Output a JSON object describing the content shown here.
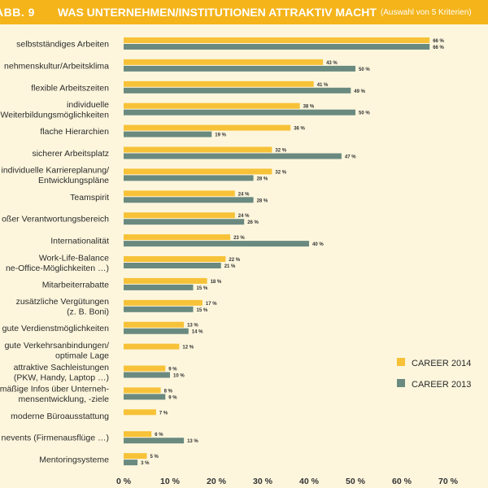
{
  "header": {
    "label": "ABB. 9",
    "title": "WAS UNTERNEHMEN/INSTITUTIONEN ATTRAKTIV MACHT",
    "subtitle": "(Auswahl von 5 Kriterien)"
  },
  "colors": {
    "header_bg": "#f4b41a",
    "background": "#fdf6dd",
    "series_2014": "#f7c238",
    "series_2013": "#6a8a80"
  },
  "chart_data": {
    "type": "bar",
    "orientation": "horizontal",
    "title": "WAS UNTERNEHMEN/INSTITUTIONEN ATTRAKTIV MACHT",
    "subtitle": "(Auswahl von 5 Kriterien)",
    "xlim": [
      0,
      70
    ],
    "xticks": [
      "0 %",
      "10 %",
      "20 %",
      "30 %",
      "40 %",
      "50 %",
      "60 %",
      "70 %"
    ],
    "value_suffix": " %",
    "legend_position": "right",
    "categories": [
      [
        "selbstständiges Arbeiten"
      ],
      [
        "nehmenskultur/Arbeitsklima"
      ],
      [
        "flexible Arbeitszeiten"
      ],
      [
        "individuelle",
        "Weiterbildungsmöglichkeiten"
      ],
      [
        "flache Hierarchien"
      ],
      [
        "sicherer Arbeitsplatz"
      ],
      [
        "individuelle Karriereplanung/",
        "Entwicklungspläne"
      ],
      [
        "Teamspirit"
      ],
      [
        "oßer Verantwortungsbereich"
      ],
      [
        "Internationalität"
      ],
      [
        "Work-Life-Balance",
        "ne-Office-Möglichkeiten …)"
      ],
      [
        "Mitarbeiterrabatte"
      ],
      [
        "zusätzliche Vergütungen",
        "(z. B. Boni)"
      ],
      [
        "gute Verdienstmöglichkeiten"
      ],
      [
        "gute Verkehrsanbindungen/",
        "optimale Lage"
      ],
      [
        "attraktive Sachleistungen",
        "(PKW, Handy, Laptop …)"
      ],
      [
        "mäßige Infos über Unterneh-",
        "mensentwicklung, -ziele"
      ],
      [
        "moderne Büroausstattung"
      ],
      [
        "nevents (Firmenausflüge …)"
      ],
      [
        "Mentoringsysteme"
      ]
    ],
    "series": [
      {
        "name": "CAREER 2014",
        "values": [
          66,
          43,
          41,
          38,
          36,
          32,
          32,
          24,
          24,
          23,
          22,
          18,
          17,
          13,
          12,
          9,
          8,
          7,
          6,
          5
        ]
      },
      {
        "name": "CAREER 2013",
        "values": [
          66,
          50,
          49,
          50,
          19,
          47,
          28,
          28,
          26,
          40,
          21,
          15,
          15,
          14,
          null,
          10,
          9,
          null,
          13,
          3
        ]
      }
    ]
  }
}
